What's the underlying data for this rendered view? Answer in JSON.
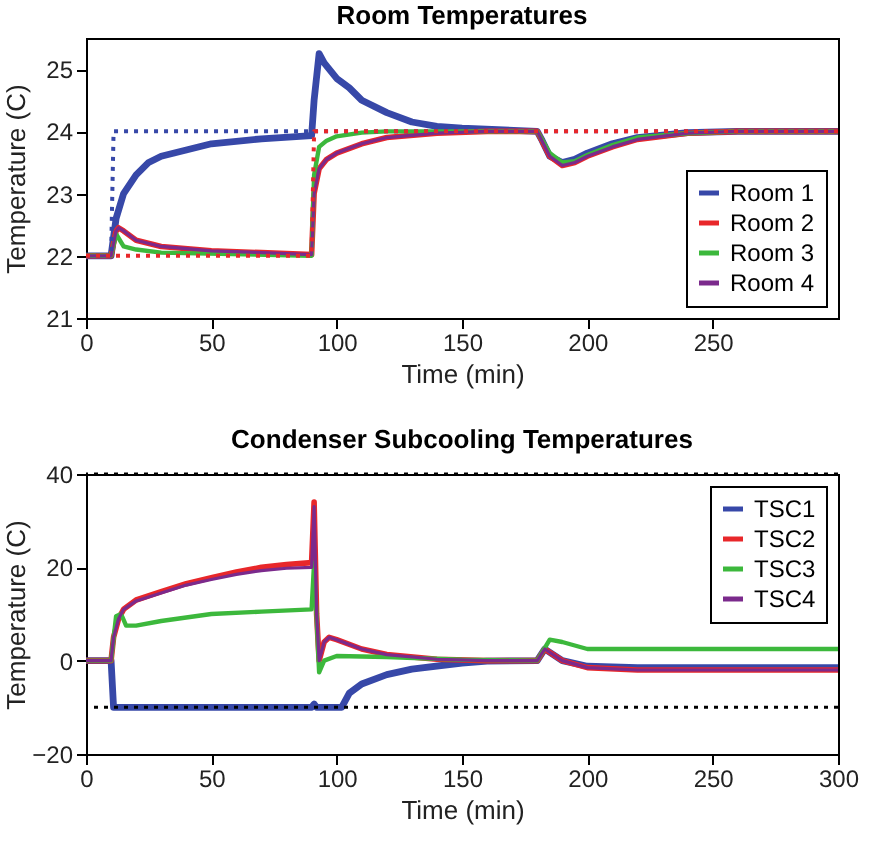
{
  "chart_data": [
    {
      "type": "line",
      "title": "Room Temperatures",
      "xlabel": "Time (min)",
      "ylabel": "Temperature (C)",
      "xlim": [
        0,
        300
      ],
      "xticks": [
        0,
        50,
        100,
        150,
        200,
        250
      ],
      "ylim": [
        21,
        25.5
      ],
      "yticks": [
        21,
        22,
        23,
        24,
        25
      ],
      "grid": false,
      "legend": "bottom right",
      "line_style": "solid",
      "series": [
        {
          "name": "Room 1",
          "color": "#3748a8",
          "x": [
            0,
            10,
            12,
            15,
            20,
            25,
            30,
            40,
            50,
            70,
            90,
            91,
            93,
            95,
            100,
            105,
            110,
            120,
            130,
            140,
            150,
            180,
            182,
            185,
            190,
            195,
            200,
            210,
            220,
            240,
            260,
            300
          ],
          "values": [
            22,
            22,
            22.6,
            23.0,
            23.3,
            23.5,
            23.6,
            23.7,
            23.8,
            23.88,
            23.93,
            24.5,
            25.25,
            25.1,
            24.85,
            24.7,
            24.5,
            24.3,
            24.15,
            24.08,
            24.05,
            24.0,
            23.85,
            23.6,
            23.5,
            23.55,
            23.65,
            23.8,
            23.9,
            23.98,
            24,
            24
          ]
        },
        {
          "name": "Room 2",
          "color": "#e8272a",
          "x": [
            0,
            10,
            12,
            13,
            15,
            20,
            30,
            50,
            70,
            90,
            91,
            93,
            96,
            100,
            110,
            120,
            140,
            160,
            180,
            185,
            190,
            195,
            200,
            210,
            220,
            240,
            260,
            300
          ],
          "values": [
            22,
            22,
            22.4,
            22.45,
            22.4,
            22.25,
            22.15,
            22.08,
            22.05,
            22.02,
            23.0,
            23.4,
            23.55,
            23.65,
            23.8,
            23.9,
            23.97,
            24,
            24,
            23.6,
            23.45,
            23.5,
            23.6,
            23.75,
            23.87,
            23.97,
            24,
            24
          ]
        },
        {
          "name": "Room 3",
          "color": "#3cb83c",
          "x": [
            0,
            10,
            12,
            15,
            20,
            30,
            90,
            91,
            93,
            96,
            100,
            110,
            120,
            180,
            185,
            190,
            195,
            200,
            210,
            220,
            240,
            260,
            300
          ],
          "values": [
            22,
            22,
            22.35,
            22.15,
            22.1,
            22.05,
            22.0,
            23.3,
            23.75,
            23.85,
            23.92,
            23.98,
            24,
            24,
            23.65,
            23.5,
            23.52,
            23.62,
            23.78,
            23.9,
            23.97,
            24,
            24
          ]
        },
        {
          "name": "Room 4",
          "color": "#7b2a8c",
          "x": [
            0,
            10,
            12,
            13,
            15,
            20,
            30,
            50,
            70,
            90,
            91,
            93,
            96,
            100,
            110,
            120,
            140,
            160,
            180,
            185,
            190,
            195,
            200,
            210,
            220,
            240,
            260,
            300
          ],
          "values": [
            22,
            22,
            22.4,
            22.45,
            22.4,
            22.25,
            22.15,
            22.08,
            22.05,
            22.02,
            23.0,
            23.4,
            23.55,
            23.65,
            23.8,
            23.9,
            23.97,
            24,
            24,
            23.6,
            23.45,
            23.5,
            23.6,
            23.75,
            23.87,
            23.97,
            24,
            24
          ]
        },
        {
          "color": "#3748a8",
          "line_style": "dotted",
          "x": [
            0,
            10,
            11,
            300
          ],
          "values": [
            22,
            22,
            24,
            24
          ]
        },
        {
          "color": "#e8272a",
          "line_style": "dotted",
          "x": [
            0,
            90,
            91,
            300
          ],
          "values": [
            22,
            22,
            24,
            24
          ]
        }
      ]
    },
    {
      "type": "line",
      "title": "Condenser Subcooling Temperatures",
      "xlabel": "Time (min)",
      "ylabel": "Temperature (C)",
      "xlim": [
        0,
        300
      ],
      "xticks": [
        0,
        50,
        100,
        150,
        200,
        250,
        300
      ],
      "ylim": [
        -20,
        40
      ],
      "yticks": [
        -20,
        0,
        20,
        40
      ],
      "grid": false,
      "legend": "top right",
      "line_style": "solid",
      "series": [
        {
          "name": "TSC1",
          "color": "#3748a8",
          "x": [
            0,
            10,
            11,
            90,
            91,
            92,
            102,
            105,
            110,
            120,
            130,
            150,
            160,
            180,
            183,
            190,
            200,
            220,
            300
          ],
          "values": [
            0,
            0,
            -10,
            -10,
            -9.3,
            -10,
            -10,
            -7,
            -5,
            -3,
            -1.8,
            -0.5,
            -0.1,
            0,
            2.5,
            0,
            -1.2,
            -1.5,
            -1.5
          ]
        },
        {
          "name": "TSC2",
          "color": "#e8272a",
          "x": [
            0,
            10,
            11,
            13,
            15,
            20,
            30,
            40,
            50,
            60,
            70,
            80,
            90,
            91,
            92,
            93,
            95,
            97,
            100,
            110,
            120,
            140,
            160,
            180,
            183,
            190,
            200,
            220,
            300
          ],
          "values": [
            0,
            0,
            5,
            9,
            11,
            13,
            14.8,
            16.5,
            17.8,
            19,
            20,
            20.6,
            21,
            34,
            10,
            0,
            4,
            5,
            4.5,
            2.5,
            1.3,
            0.3,
            0,
            0,
            2.5,
            0,
            -1.5,
            -2,
            -2
          ]
        },
        {
          "name": "TSC3",
          "color": "#3cb83c",
          "x": [
            0,
            10,
            12,
            14,
            16,
            20,
            30,
            50,
            70,
            90,
            91,
            93,
            95,
            100,
            120,
            150,
            180,
            185,
            190,
            200,
            300
          ],
          "values": [
            0,
            0,
            9.5,
            10,
            7.5,
            7.5,
            8.5,
            10,
            10.5,
            11,
            21,
            -2.5,
            0,
            1,
            0.8,
            0.2,
            0,
            4.5,
            4,
            2.5,
            2.5
          ]
        },
        {
          "name": "TSC4",
          "color": "#7b2a8c",
          "x": [
            0,
            10,
            11,
            13,
            15,
            20,
            30,
            40,
            50,
            60,
            70,
            80,
            90,
            91,
            92,
            93,
            95,
            97,
            100,
            110,
            120,
            140,
            160,
            180,
            183,
            190,
            200,
            220,
            300
          ],
          "values": [
            0,
            0,
            5,
            9,
            11,
            12.8,
            14.5,
            16.2,
            17.4,
            18.5,
            19.3,
            19.8,
            20,
            33,
            10,
            0,
            4,
            5,
            4.5,
            2.5,
            1.3,
            0.3,
            0,
            0,
            2.5,
            0,
            -1.5,
            -2,
            -2
          ]
        }
      ],
      "ref_lines": [
        {
          "axis": "y",
          "value": 40,
          "color": "#000000",
          "line_style": "dotted"
        },
        {
          "axis": "y",
          "value": -10,
          "color": "#000000",
          "line_style": "dotted"
        }
      ]
    }
  ]
}
